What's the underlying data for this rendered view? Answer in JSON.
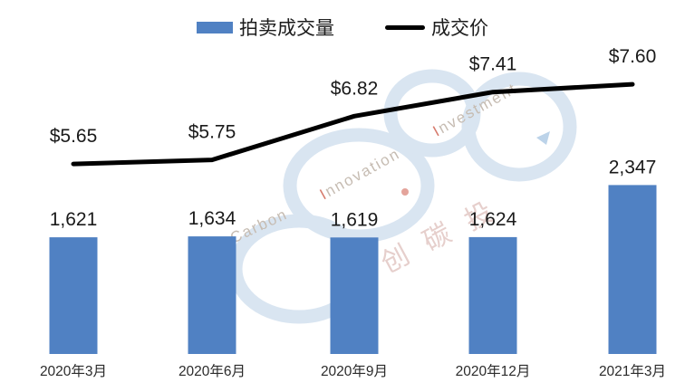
{
  "chart_data": {
    "type": "combo",
    "title": "",
    "categories": [
      "2020年3月",
      "2020年6月",
      "2020年9月",
      "2020年12月",
      "2021年3月"
    ],
    "series": [
      {
        "name": "拍卖成交量",
        "chart_type": "bar",
        "values": [
          1621,
          1634,
          1619,
          1624,
          2347
        ],
        "data_labels": [
          "1,621",
          "1,634",
          "1,619",
          "1,624",
          "2,347"
        ],
        "color": "#5081c3"
      },
      {
        "name": "成交价",
        "chart_type": "line",
        "values": [
          5.65,
          5.75,
          6.82,
          7.41,
          7.6
        ],
        "data_labels": [
          "$5.65",
          "$5.75",
          "$6.82",
          "$7.41",
          "$7.60"
        ],
        "color": "#000000"
      }
    ],
    "legend_position": "top",
    "grid": false,
    "axes_visible": false,
    "background": "#ffffff",
    "label_color": "#1a1a1a",
    "category_label_color": "#2b2b2b"
  },
  "watermark": {
    "brand_fragments": [
      "oCarbon",
      "Innovation",
      "Investment"
    ],
    "cjk_characters": [
      "创",
      "碳",
      "投"
    ],
    "ring_color": "#d9e5f1",
    "text_color": "#c6bcb2",
    "accent_color": "#cd5a48",
    "cjk_color": "#e6cfcc"
  }
}
